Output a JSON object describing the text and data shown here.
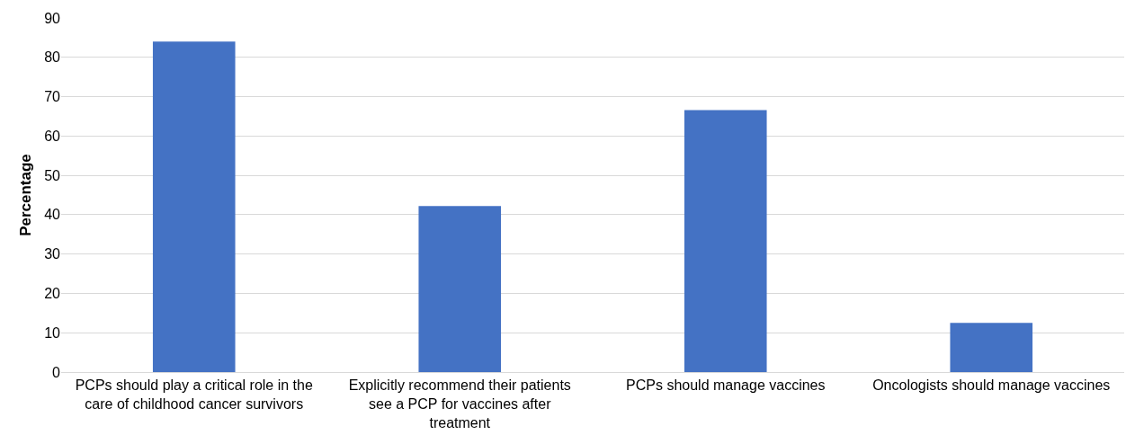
{
  "chart_data": {
    "type": "bar",
    "ylabel": "Percentage",
    "categories": [
      "PCPs should play a critical role in the care of childhood cancer survivors",
      "Explicitly recommend their patients see a PCP for vaccines after treatment",
      "PCPs should manage vaccines",
      "Oncologists should manage vaccines"
    ],
    "values": [
      84,
      42.2,
      66.6,
      12.5
    ],
    "color": "#4472c4",
    "ylim": [
      0,
      90
    ],
    "yticks": [
      0,
      10,
      20,
      30,
      40,
      50,
      60,
      70,
      80,
      90
    ],
    "grid": "y"
  }
}
